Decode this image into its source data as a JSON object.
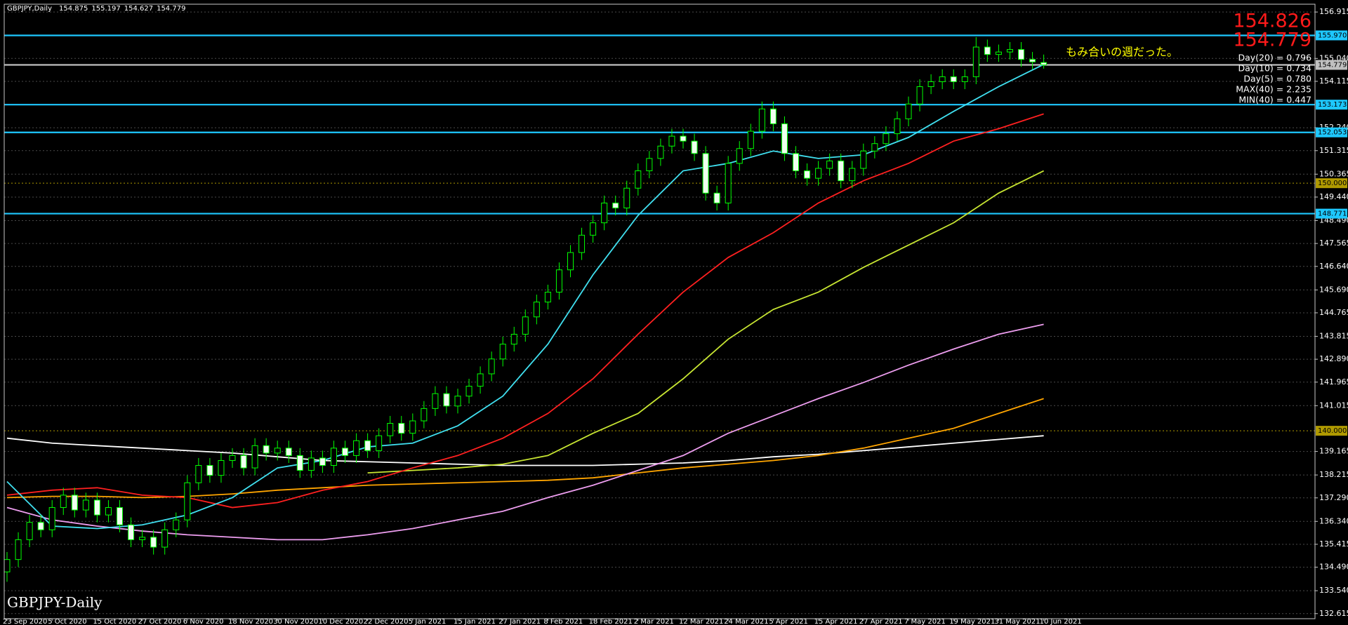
{
  "chart_data": {
    "type": "candlestick",
    "symbol": "GBPJPY,Daily",
    "bid_big": 154.826,
    "watermark": "GBPJPY-Daily",
    "annotation": "もみ合いの週だった。",
    "stats": [
      "Day(20) = 0.796",
      "Day(10) = 0.734",
      "Day(5) = 0.780",
      "MAX(40) = 2.235",
      "MIN(40) = 0.447"
    ],
    "categories": [
      "23 Sep 2020",
      null,
      null,
      null,
      "5 Oct 2020",
      null,
      null,
      null,
      "15 Oct 2020",
      null,
      null,
      null,
      "27 Oct 2020",
      null,
      null,
      null,
      "6 Nov 2020",
      null,
      null,
      null,
      "18 Nov 2020",
      null,
      null,
      null,
      "30 Nov 2020",
      null,
      null,
      null,
      "10 Dec 2020",
      null,
      null,
      null,
      "22 Dec 2020",
      null,
      null,
      null,
      "5 Jan 2021",
      null,
      null,
      null,
      "15 Jan 2021",
      null,
      null,
      null,
      "27 Jan 2021",
      null,
      null,
      null,
      "8 Feb 2021",
      null,
      null,
      null,
      "18 Feb 2021",
      null,
      null,
      null,
      "2 Mar 2021",
      null,
      null,
      null,
      "12 Mar 2021",
      null,
      null,
      null,
      "24 Mar 2021",
      null,
      null,
      null,
      "5 Apr 2021",
      null,
      null,
      null,
      "15 Apr 2021",
      null,
      null,
      null,
      "27 Apr 2021",
      null,
      null,
      null,
      "7 May 2021",
      null,
      null,
      null,
      "19 May 2021",
      null,
      null,
      null,
      "31 May 2021",
      null,
      null,
      null,
      "10 Jun 2021"
    ],
    "open": [
      134.3,
      134.8,
      135.6,
      136.3,
      136.0,
      136.9,
      137.4,
      136.8,
      137.2,
      136.6,
      136.9,
      136.2,
      135.6,
      135.7,
      135.3,
      136.0,
      136.4,
      137.9,
      138.6,
      138.2,
      138.8,
      139.0,
      138.5,
      139.4,
      139.1,
      139.3,
      139.0,
      138.4,
      138.9,
      138.6,
      139.3,
      139.0,
      139.6,
      139.2,
      139.8,
      140.3,
      139.9,
      140.4,
      140.9,
      141.5,
      141.0,
      141.4,
      141.8,
      142.3,
      142.9,
      143.5,
      143.9,
      144.6,
      145.2,
      145.6,
      146.5,
      147.2,
      147.9,
      148.4,
      149.2,
      149.0,
      149.8,
      150.5,
      151.0,
      151.5,
      151.9,
      151.7,
      151.2,
      149.6,
      149.2,
      150.8,
      151.4,
      152.1,
      153.0,
      152.4,
      151.2,
      150.5,
      150.2,
      150.6,
      150.9,
      150.1,
      150.6,
      151.3,
      151.6,
      152.0,
      152.6,
      153.2,
      153.9,
      154.1,
      154.3,
      154.1,
      154.3,
      155.5,
      155.2,
      155.3,
      155.4,
      155.0,
      154.875
    ],
    "high": [
      135.1,
      135.9,
      136.6,
      136.6,
      137.2,
      137.7,
      137.7,
      137.5,
      137.5,
      137.2,
      137.2,
      136.5,
      136.0,
      136.0,
      136.3,
      136.7,
      138.2,
      138.9,
      138.9,
      139.1,
      139.3,
      139.3,
      139.7,
      139.7,
      139.6,
      139.6,
      139.3,
      139.2,
      139.2,
      139.6,
      139.6,
      139.9,
      139.9,
      140.1,
      140.6,
      140.6,
      140.7,
      141.2,
      141.8,
      141.8,
      141.7,
      142.1,
      142.6,
      143.2,
      143.8,
      144.2,
      144.9,
      145.5,
      145.9,
      146.8,
      147.5,
      148.2,
      148.7,
      149.5,
      149.5,
      150.1,
      150.8,
      151.3,
      151.8,
      152.2,
      152.2,
      152.0,
      151.5,
      149.9,
      151.1,
      151.7,
      152.4,
      153.3,
      153.3,
      152.7,
      151.5,
      150.8,
      150.9,
      151.2,
      151.2,
      150.9,
      151.6,
      151.9,
      152.3,
      152.9,
      153.5,
      154.2,
      154.4,
      154.6,
      154.6,
      154.6,
      155.9,
      155.8,
      155.6,
      155.7,
      155.7,
      155.3,
      155.197
    ],
    "low": [
      133.9,
      134.5,
      135.3,
      135.7,
      135.7,
      136.6,
      136.5,
      136.5,
      136.3,
      136.3,
      135.9,
      135.3,
      135.3,
      135.0,
      135.0,
      135.7,
      136.1,
      137.6,
      137.9,
      137.9,
      138.5,
      138.2,
      138.2,
      138.8,
      138.8,
      138.7,
      138.1,
      138.1,
      138.3,
      138.3,
      138.7,
      138.7,
      138.9,
      138.9,
      139.5,
      139.6,
      139.6,
      140.1,
      140.6,
      140.7,
      140.7,
      141.1,
      141.5,
      142.0,
      142.6,
      143.2,
      143.6,
      144.3,
      144.9,
      145.3,
      146.2,
      146.9,
      147.6,
      148.1,
      148.7,
      148.7,
      149.5,
      150.2,
      150.7,
      151.2,
      151.4,
      150.9,
      149.3,
      148.9,
      148.9,
      150.5,
      151.1,
      151.8,
      152.1,
      150.9,
      150.2,
      149.9,
      149.9,
      150.3,
      149.8,
      149.8,
      150.3,
      151.0,
      151.3,
      151.7,
      152.3,
      152.9,
      153.6,
      153.8,
      153.8,
      153.8,
      154.0,
      154.9,
      154.9,
      155.0,
      154.7,
      154.6,
      154.627
    ],
    "close": [
      134.8,
      135.6,
      136.3,
      136.0,
      136.9,
      137.4,
      136.8,
      137.2,
      136.6,
      136.9,
      136.2,
      135.6,
      135.7,
      135.3,
      136.0,
      136.4,
      137.9,
      138.6,
      138.2,
      138.8,
      139.0,
      138.5,
      139.4,
      139.1,
      139.3,
      139.0,
      138.4,
      138.9,
      138.6,
      139.3,
      139.0,
      139.6,
      139.2,
      139.8,
      140.3,
      139.9,
      140.4,
      140.9,
      141.5,
      141.0,
      141.4,
      141.8,
      142.3,
      142.9,
      143.5,
      143.9,
      144.6,
      145.2,
      145.6,
      146.5,
      147.2,
      147.9,
      148.4,
      149.2,
      149.0,
      149.8,
      150.5,
      151.0,
      151.5,
      151.9,
      151.7,
      151.2,
      149.6,
      149.2,
      150.8,
      151.4,
      152.1,
      153.0,
      152.4,
      151.2,
      150.5,
      150.2,
      150.6,
      150.9,
      150.1,
      150.6,
      151.3,
      151.6,
      152.0,
      152.6,
      153.2,
      153.9,
      154.1,
      154.3,
      154.1,
      154.3,
      155.5,
      155.2,
      155.3,
      155.4,
      155.0,
      154.9,
      154.779
    ],
    "up_color": "#00ff00",
    "down_color": "#00ff00",
    "overlays": [
      {
        "color": "#ffffff",
        "x": [
          "23 Sep 2020",
          "5 Oct 2020",
          "15 Oct 2020",
          "27 Oct 2020",
          "6 Nov 2020",
          "18 Nov 2020",
          "30 Nov 2020",
          "10 Dec 2020",
          "22 Dec 2020",
          "5 Jan 2021",
          "15 Jan 2021",
          "27 Jan 2021",
          "8 Feb 2021",
          "18 Feb 2021",
          "2 Mar 2021",
          "12 Mar 2021",
          "24 Mar 2021",
          "5 Apr 2021",
          "15 Apr 2021",
          "27 Apr 2021",
          "7 May 2021",
          "19 May 2021",
          "31 May 2021",
          "10 Jun 2021"
        ],
        "values": [
          139.7,
          139.5,
          139.4,
          139.3,
          139.2,
          139.1,
          138.95,
          138.8,
          138.75,
          138.7,
          138.65,
          138.6,
          138.6,
          138.6,
          138.65,
          138.7,
          138.8,
          138.95,
          139.05,
          139.2,
          139.35,
          139.5,
          139.65,
          139.8
        ]
      },
      {
        "color": "#ffa500",
        "x": [
          "23 Sep 2020",
          "5 Oct 2020",
          "15 Oct 2020",
          "27 Oct 2020",
          "6 Nov 2020",
          "18 Nov 2020",
          "30 Nov 2020",
          "10 Dec 2020",
          "22 Dec 2020",
          "5 Jan 2021",
          "15 Jan 2021",
          "27 Jan 2021",
          "8 Feb 2021",
          "18 Feb 2021",
          "2 Mar 2021",
          "12 Mar 2021",
          "24 Mar 2021",
          "5 Apr 2021",
          "15 Apr 2021",
          "27 Apr 2021",
          "7 May 2021",
          "19 May 2021",
          "31 May 2021",
          "10 Jun 2021"
        ],
        "values": [
          137.3,
          137.35,
          137.35,
          137.3,
          137.35,
          137.45,
          137.6,
          137.7,
          137.8,
          137.85,
          137.9,
          137.95,
          138.0,
          138.1,
          138.3,
          138.5,
          138.65,
          138.8,
          139.0,
          139.3,
          139.7,
          140.1,
          140.7,
          141.3
        ]
      },
      {
        "color": "#ee9ef0",
        "x": [
          "23 Sep 2020",
          "5 Oct 2020",
          "15 Oct 2020",
          "27 Oct 2020",
          "6 Nov 2020",
          "18 Nov 2020",
          "30 Nov 2020",
          "10 Dec 2020",
          "22 Dec 2020",
          "5 Jan 2021",
          "15 Jan 2021",
          "27 Jan 2021",
          "8 Feb 2021",
          "18 Feb 2021",
          "2 Mar 2021",
          "12 Mar 2021",
          "24 Mar 2021",
          "5 Apr 2021",
          "15 Apr 2021",
          "27 Apr 2021",
          "7 May 2021",
          "19 May 2021",
          "31 May 2021",
          "10 Jun 2021"
        ],
        "values": [
          136.9,
          136.4,
          136.15,
          135.95,
          135.8,
          135.7,
          135.6,
          135.6,
          135.8,
          136.05,
          136.4,
          136.75,
          137.3,
          137.8,
          138.4,
          139.0,
          139.9,
          140.6,
          141.3,
          141.95,
          142.65,
          143.3,
          143.9,
          144.3
        ]
      },
      {
        "color": "#c8e632",
        "x": [
          "22 Dec 2020",
          "5 Jan 2021",
          "15 Jan 2021",
          "27 Jan 2021",
          "8 Feb 2021",
          "18 Feb 2021",
          "2 Mar 2021",
          "12 Mar 2021",
          "24 Mar 2021",
          "5 Apr 2021",
          "15 Apr 2021",
          "27 Apr 2021",
          "7 May 2021",
          "19 May 2021",
          "31 May 2021",
          "10 Jun 2021"
        ],
        "values": [
          138.3,
          138.4,
          138.5,
          138.65,
          139.0,
          139.9,
          140.7,
          142.1,
          143.7,
          144.9,
          145.6,
          146.6,
          147.5,
          148.4,
          149.6,
          150.5
        ]
      },
      {
        "color": "#ff2020",
        "x": [
          "23 Sep 2020",
          "5 Oct 2020",
          "15 Oct 2020",
          "27 Oct 2020",
          "6 Nov 2020",
          "18 Nov 2020",
          "30 Nov 2020",
          "10 Dec 2020",
          "22 Dec 2020",
          "5 Jan 2021",
          "15 Jan 2021",
          "27 Jan 2021",
          "8 Feb 2021",
          "18 Feb 2021",
          "2 Mar 2021",
          "12 Mar 2021",
          "24 Mar 2021",
          "5 Apr 2021",
          "15 Apr 2021",
          "27 Apr 2021",
          "7 May 2021",
          "19 May 2021",
          "31 May 2021",
          "10 Jun 2021"
        ],
        "values": [
          137.4,
          137.6,
          137.7,
          137.4,
          137.3,
          136.9,
          137.1,
          137.6,
          137.95,
          138.5,
          139.0,
          139.7,
          140.7,
          142.1,
          143.9,
          145.6,
          147.0,
          148.0,
          149.2,
          150.1,
          150.8,
          151.7,
          152.2,
          152.8
        ]
      },
      {
        "color": "#40e0f0",
        "x": [
          "23 Sep 2020",
          "5 Oct 2020",
          "15 Oct 2020",
          "27 Oct 2020",
          "6 Nov 2020",
          "18 Nov 2020",
          "30 Nov 2020",
          "10 Dec 2020",
          "22 Dec 2020",
          "5 Jan 2021",
          "15 Jan 2021",
          "27 Jan 2021",
          "8 Feb 2021",
          "18 Feb 2021",
          "2 Mar 2021",
          "12 Mar 2021",
          "24 Mar 2021",
          "5 Apr 2021",
          "15 Apr 2021",
          "27 Apr 2021",
          "7 May 2021",
          "19 May 2021",
          "31 May 2021",
          "10 Jun 2021"
        ],
        "values": [
          137.95,
          136.15,
          136.05,
          136.2,
          136.6,
          137.3,
          138.5,
          138.8,
          139.35,
          139.5,
          140.2,
          141.4,
          143.5,
          146.3,
          148.7,
          150.5,
          150.8,
          151.3,
          151.0,
          151.15,
          151.85,
          152.9,
          153.9,
          154.8
        ]
      }
    ],
    "levels": [
      {
        "value": 155.97,
        "label": "155.970",
        "color": "#1ec8ff",
        "dash": false
      },
      {
        "value": 153.173,
        "color": "#1ec8ff",
        "dash": false
      },
      {
        "value": 152.053,
        "color": "#1ec8ff",
        "dash": false
      },
      {
        "value": 148.771,
        "color": "#1ec8ff",
        "dash": false
      },
      {
        "value": 150,
        "label": "150.000",
        "color": "#b09a00",
        "dash": true
      },
      {
        "value": 140,
        "label": "140.000",
        "color": "#b09a00",
        "dash": true
      },
      {
        "value": 154.779,
        "color": "#c0c0c0",
        "dash": false
      }
    ],
    "ylim": [
      132.41,
      157.23
    ],
    "yticks": [
      156.915,
      {
        "value": 155.04,
        "label": "155.040"
      },
      154.115,
      {
        "value": 152.24,
        "label": "152.240"
      },
      151.315,
      150.365,
      {
        "value": 149.44,
        "label": "149.440"
      },
      {
        "value": 148.49,
        "label": "148.490"
      },
      147.565,
      {
        "value": 146.64,
        "label": "146.640"
      },
      {
        "value": 145.69,
        "label": "145.690"
      },
      144.765,
      143.815,
      {
        "value": 142.89,
        "label": "142.890"
      },
      141.965,
      141.015,
      139.165,
      138.215,
      {
        "value": 137.29,
        "label": "137.290"
      },
      {
        "value": 136.34,
        "label": "136.340"
      },
      135.415,
      {
        "value": 134.49,
        "label": "134.490"
      },
      {
        "value": 133.54,
        "label": "133.540"
      },
      132.615
    ],
    "grid": true
  }
}
